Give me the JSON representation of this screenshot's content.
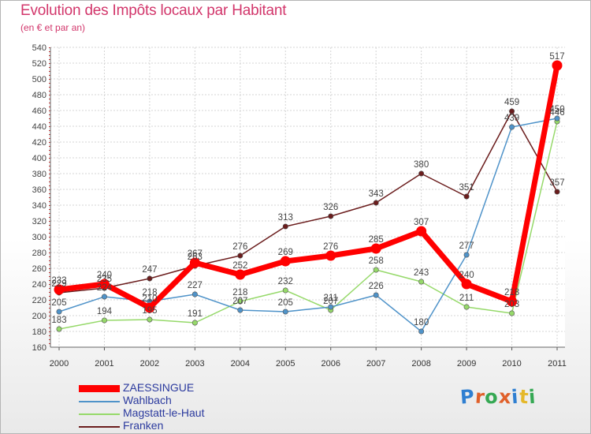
{
  "title": "Evolution des Impôts locaux par Habitant",
  "subtitle": "(en € et par an)",
  "logo": {
    "text": "Proxiti",
    "letters": [
      {
        "ch": "P",
        "color": "#2f7fd1"
      },
      {
        "ch": "r",
        "color": "#e0602a"
      },
      {
        "ch": "o",
        "color": "#35a853"
      },
      {
        "ch": "x",
        "color": "#e0602a"
      },
      {
        "ch": "i",
        "color": "#2f7fd1"
      },
      {
        "ch": "t",
        "color": "#e5b82a"
      },
      {
        "ch": "i",
        "color": "#35a853"
      }
    ]
  },
  "chart_data": {
    "type": "line",
    "title": "Evolution des Impôts locaux par Habitant",
    "subtitle": "(en € et par an)",
    "xlabel": "",
    "ylabel": "",
    "categories": [
      "2000",
      "2001",
      "2002",
      "2003",
      "2004",
      "2005",
      "2006",
      "2007",
      "2008",
      "2009",
      "2010",
      "2011"
    ],
    "ylim": [
      160,
      540
    ],
    "yticks": [
      160,
      180,
      200,
      220,
      240,
      260,
      280,
      300,
      320,
      340,
      360,
      380,
      400,
      420,
      440,
      460,
      480,
      500,
      520,
      540
    ],
    "grid": true,
    "legend": "bottom-left",
    "series": [
      {
        "name": "Franken",
        "color": "#6b1d1d",
        "values": [
          229,
          235,
          247,
          263,
          276,
          313,
          326,
          343,
          380,
          351,
          459,
          357
        ]
      },
      {
        "name": "Magstatt-le-Haut",
        "color": "#96d96a",
        "values": [
          183,
          194,
          195,
          191,
          218,
          232,
          207,
          258,
          243,
          211,
          203,
          446
        ]
      },
      {
        "name": "Wahlbach",
        "color": "#4f93c9",
        "values": [
          205,
          224,
          218,
          227,
          207,
          205,
          211,
          226,
          180,
          277,
          439,
          450
        ]
      },
      {
        "name": "ZAESSINGUE",
        "color": "#ff0000",
        "values": [
          233,
          240,
          210,
          267,
          252,
          269,
          276,
          285,
          307,
          240,
          218,
          517
        ]
      }
    ],
    "legend_order": [
      "ZAESSINGUE",
      "Wahlbach",
      "Magstatt-le-Haut",
      "Franken"
    ]
  }
}
